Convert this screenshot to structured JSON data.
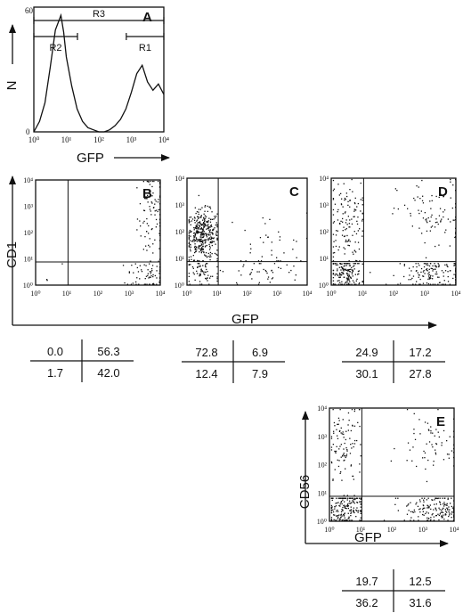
{
  "chart_data": [
    {
      "id": "A",
      "type": "histogram",
      "panel_label": "A",
      "xlabel": "GFP",
      "ylabel": "N",
      "x_scale": "log",
      "xlim": [
        1,
        10000
      ],
      "ylim": [
        0,
        60
      ],
      "x_tick_labels": [
        "10⁰",
        "10¹",
        "10²",
        "10³",
        "10⁴"
      ],
      "y_tick_labels": [
        "0",
        "60"
      ],
      "gates": [
        {
          "name": "R3",
          "range": [
            1,
            10000
          ]
        },
        {
          "name": "R2",
          "range": [
            1,
            22
          ]
        },
        {
          "name": "R1",
          "range": [
            700,
            10000
          ]
        }
      ],
      "histogram": {
        "x": [
          1.0,
          1.5,
          2.2,
          3.2,
          4.6,
          6.8,
          8.3,
          10.0,
          14.7,
          21.5,
          31.6,
          46.4,
          68.1,
          100,
          147,
          215,
          316,
          464,
          681,
          1000,
          1468,
          2154,
          3162,
          4642,
          6813,
          10000
        ],
        "y": [
          0,
          5,
          14,
          31,
          49,
          56,
          48,
          36,
          22,
          11,
          5,
          2,
          1,
          0,
          0,
          1,
          3,
          6,
          11,
          19,
          28,
          32,
          24,
          20,
          23,
          18
        ]
      }
    },
    {
      "id": "B",
      "type": "scatter",
      "panel_label": "B",
      "xlabel": "GFP",
      "ylabel": "CD1",
      "x_scale": "log",
      "y_scale": "log",
      "xlim": [
        1,
        10000
      ],
      "ylim": [
        1,
        10000
      ],
      "quadrants": {
        "upper_left": 0.0,
        "upper_right": 56.3,
        "lower_left": 1.7,
        "lower_right": 42.0
      }
    },
    {
      "id": "C",
      "type": "scatter",
      "panel_label": "C",
      "xlabel": "GFP",
      "ylabel": "CD1",
      "x_scale": "log",
      "y_scale": "log",
      "xlim": [
        1,
        10000
      ],
      "ylim": [
        1,
        10000
      ],
      "quadrants": {
        "upper_left": 72.8,
        "upper_right": 6.9,
        "lower_left": 12.4,
        "lower_right": 7.9
      }
    },
    {
      "id": "D",
      "type": "scatter",
      "panel_label": "D",
      "xlabel": "GFP",
      "ylabel": "CD1",
      "x_scale": "log",
      "y_scale": "log",
      "xlim": [
        1,
        10000
      ],
      "ylim": [
        1,
        10000
      ],
      "quadrants": {
        "upper_left": 24.9,
        "upper_right": 17.2,
        "lower_left": 30.1,
        "lower_right": 27.8
      }
    },
    {
      "id": "E",
      "type": "scatter",
      "panel_label": "E",
      "xlabel": "GFP",
      "ylabel": "CD56",
      "x_scale": "log",
      "y_scale": "log",
      "xlim": [
        1,
        10000
      ],
      "ylim": [
        1,
        10000
      ],
      "quadrants": {
        "upper_left": 19.7,
        "upper_right": 12.5,
        "lower_left": 36.2,
        "lower_right": 31.6
      }
    }
  ],
  "labels": {
    "axis_cd1": "CD1",
    "axis_gfp_bcd": "GFP",
    "axis_cd56": "CD56",
    "axis_gfp_e": "GFP"
  },
  "tick_labels": [
    "10⁰",
    "10¹",
    "10²",
    "10³",
    "10⁴"
  ],
  "colors": {
    "ink": "#111111",
    "background": "#ffffff"
  }
}
